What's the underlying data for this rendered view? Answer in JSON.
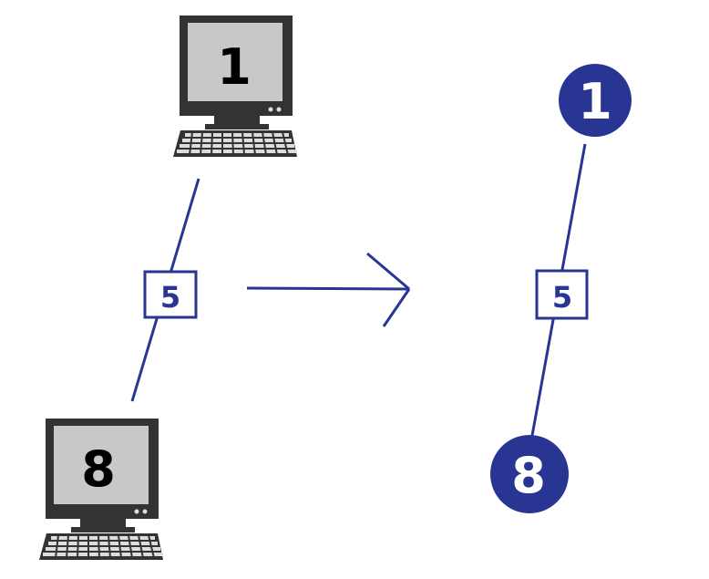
{
  "left_network": {
    "computer_top_label": "1",
    "computer_bottom_label": "8",
    "edge_weight": "5"
  },
  "right_graph": {
    "node_top_label": "1",
    "node_bottom_label": "8",
    "edge_weight": "5"
  },
  "colors": {
    "accent": "#283593",
    "monitor_body": "#333333",
    "screen": "#c8c8c8",
    "keyboard": "#333333",
    "key": "#dddddd"
  }
}
